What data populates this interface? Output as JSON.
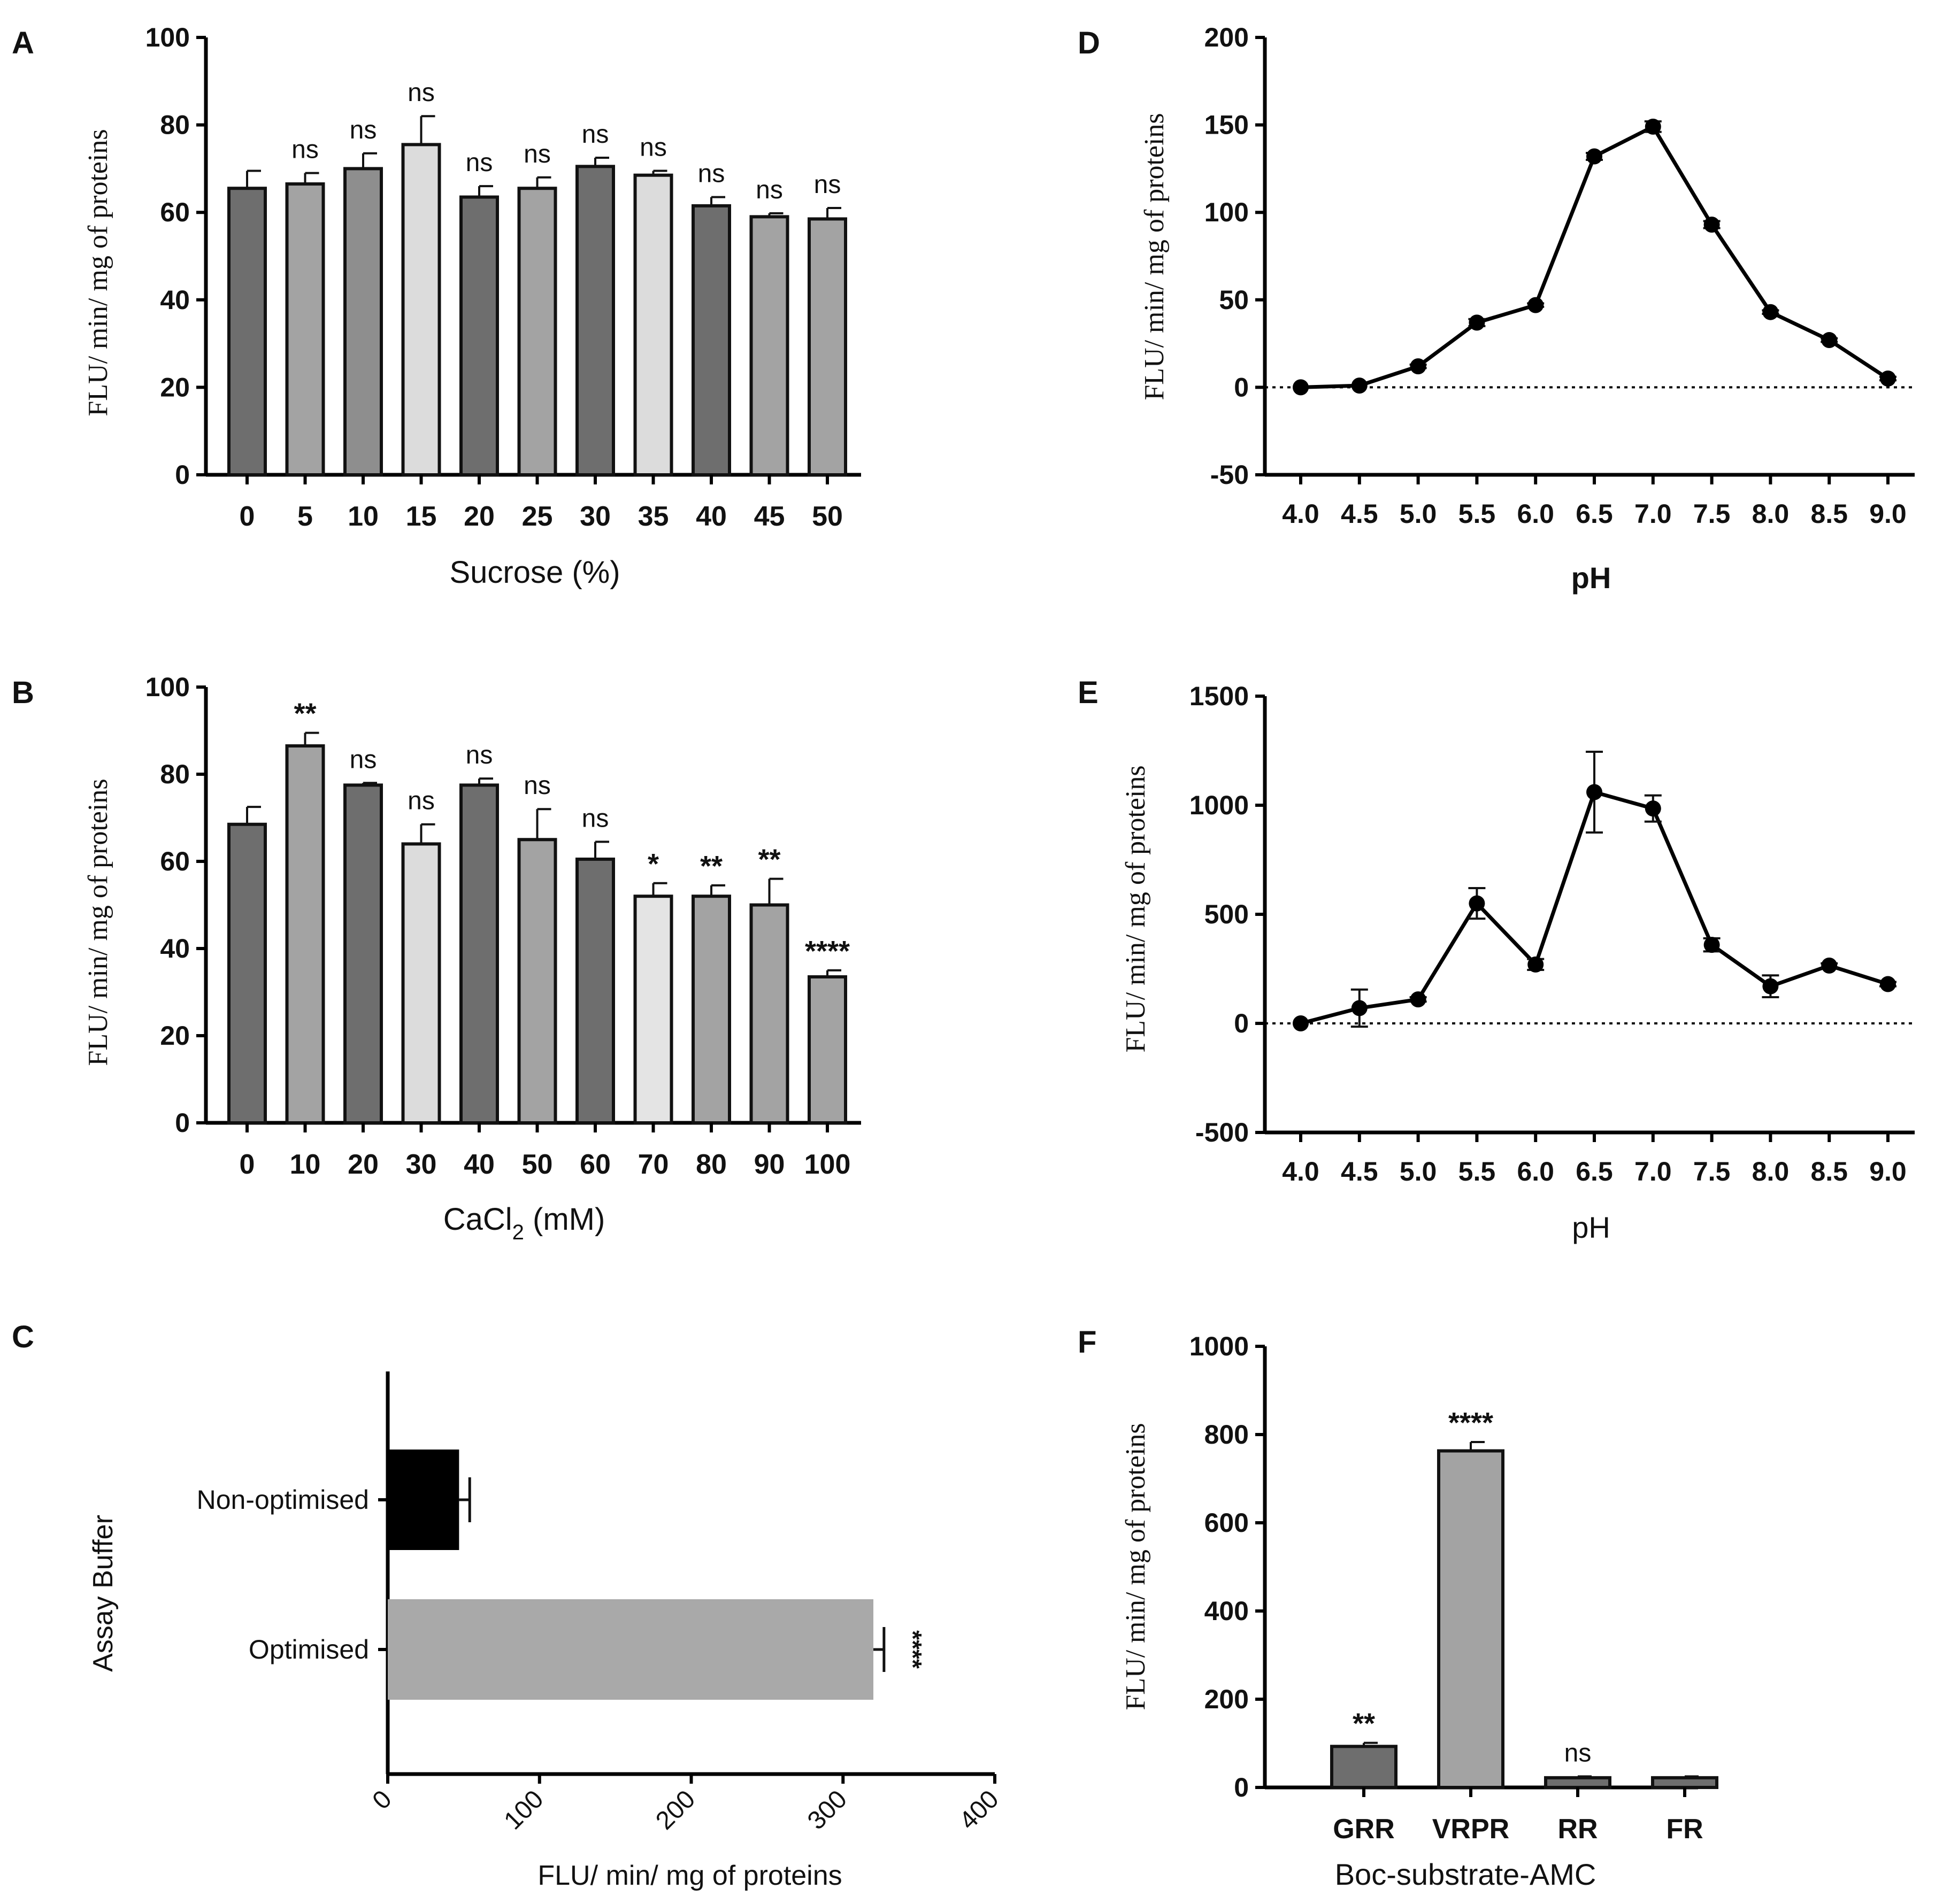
{
  "chart_data": [
    {
      "panel": "A",
      "type": "bar",
      "xlabel": "Sucrose (%)",
      "ylabel": "FLU/ min/ mg of proteins",
      "ylim": [
        0,
        100
      ],
      "yticks": [
        0,
        20,
        40,
        60,
        80,
        100
      ],
      "categories": [
        "0",
        "5",
        "10",
        "15",
        "20",
        "25",
        "30",
        "35",
        "40",
        "45",
        "50"
      ],
      "values": [
        65.5,
        66.5,
        70,
        75.5,
        63.5,
        65.5,
        70.5,
        68.5,
        61.5,
        59,
        58.5
      ],
      "errors": [
        4,
        2.5,
        3.5,
        6.5,
        2.5,
        2.5,
        2,
        1,
        2,
        0.8,
        2.5
      ],
      "annotations": [
        "",
        "ns",
        "ns",
        "ns",
        "ns",
        "ns",
        "ns",
        "ns",
        "ns",
        "ns",
        "ns"
      ],
      "colors": [
        "#6e6e6e",
        "#a3a3a3",
        "#8e8e8e",
        "#dcdcdc",
        "#6e6e6e",
        "#a3a3a3",
        "#6e6e6e",
        "#dcdcdc",
        "#6e6e6e",
        "#a3a3a3",
        "#a3a3a3"
      ]
    },
    {
      "panel": "B",
      "type": "bar",
      "xlabel": "CaCl2 (mM)",
      "ylabel": "FLU/ min/ mg of proteins",
      "ylim": [
        0,
        100
      ],
      "yticks": [
        0,
        20,
        40,
        60,
        80,
        100
      ],
      "categories": [
        "0",
        "10",
        "20",
        "30",
        "40",
        "50",
        "60",
        "70",
        "80",
        "90",
        "100"
      ],
      "values": [
        68.5,
        86.5,
        77.5,
        64,
        77.5,
        65,
        60.5,
        52,
        52,
        50,
        33.5
      ],
      "errors": [
        4,
        3,
        0.5,
        4.5,
        1.5,
        7,
        4,
        3,
        2.5,
        6,
        1.5
      ],
      "annotations": [
        "",
        "**",
        "ns",
        "ns",
        "ns",
        "ns",
        "ns",
        "*",
        "**",
        "**",
        "****"
      ],
      "colors": [
        "#6e6e6e",
        "#a3a3a3",
        "#6e6e6e",
        "#dcdcdc",
        "#6e6e6e",
        "#a3a3a3",
        "#6e6e6e",
        "#e4e4e4",
        "#a3a3a3",
        "#a3a3a3",
        "#a3a3a3"
      ]
    },
    {
      "panel": "C",
      "type": "bar",
      "orientation": "horizontal",
      "xlabel": "FLU/ min/ mg of proteins",
      "ylabel": "Assay Buffer",
      "xlim": [
        0,
        400
      ],
      "xticks": [
        0,
        100,
        200,
        300,
        400
      ],
      "categories": [
        "Non-optimised",
        "Optimised"
      ],
      "values": [
        47,
        320
      ],
      "errors": [
        7,
        7
      ],
      "annotations": [
        "",
        "****"
      ],
      "colors": [
        "#000000",
        "#a9a9a9"
      ]
    },
    {
      "panel": "D",
      "type": "line",
      "xlabel": "pH",
      "ylabel": "FLU/ min/ mg of proteins",
      "ylim": [
        -50,
        200
      ],
      "yticks": [
        -50,
        0,
        50,
        100,
        150,
        200
      ],
      "x": [
        "4.0",
        "4.5",
        "5.0",
        "5.5",
        "6.0",
        "6.5",
        "7.0",
        "7.5",
        "8.0",
        "8.5",
        "9.0"
      ],
      "y": [
        0,
        1,
        12,
        37,
        47,
        132,
        149,
        93,
        43,
        27,
        5
      ],
      "errors": [
        0,
        0,
        1,
        2,
        1,
        2,
        3,
        2,
        1,
        1,
        1
      ],
      "zero_line": "dotted"
    },
    {
      "panel": "E",
      "type": "line",
      "xlabel": "pH",
      "ylabel": "FLU/ min/ mg of proteins",
      "ylim": [
        -500,
        1500
      ],
      "yticks": [
        -500,
        0,
        500,
        1000,
        1500
      ],
      "x": [
        "4.0",
        "4.5",
        "5.0",
        "5.5",
        "6.0",
        "6.5",
        "7.0",
        "7.5",
        "8.0",
        "8.5",
        "9.0"
      ],
      "y": [
        0,
        70,
        110,
        550,
        270,
        1060,
        985,
        360,
        170,
        265,
        180
      ],
      "errors": [
        0,
        85,
        10,
        70,
        25,
        185,
        60,
        30,
        50,
        10,
        10
      ],
      "zero_line": "dotted"
    },
    {
      "panel": "F",
      "type": "bar",
      "xlabel": "Boc-substrate-AMC",
      "ylabel": "FLU/ min/ mg of proteins",
      "ylim": [
        0,
        1000
      ],
      "yticks": [
        0,
        200,
        400,
        600,
        800,
        1000
      ],
      "categories": [
        "GRR",
        "VRPR",
        "RR",
        "FR"
      ],
      "values": [
        93,
        763,
        22,
        22
      ],
      "errors": [
        8,
        20,
        3,
        3
      ],
      "annotations": [
        "**",
        "****",
        "ns",
        ""
      ],
      "colors": [
        "#6e6e6e",
        "#a3a3a3",
        "#6e6e6e",
        "#6e6e6e"
      ]
    }
  ]
}
